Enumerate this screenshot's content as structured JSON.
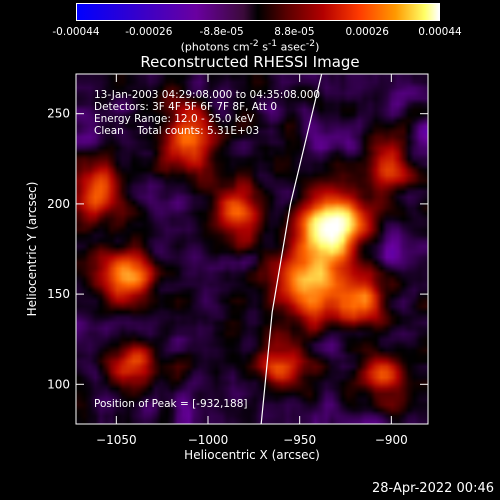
{
  "colorbar": {
    "ticks": [
      "-0.00044",
      "-0.00026",
      "-8.8e-05",
      "8.8e-05",
      "0.00026",
      "0.00044"
    ],
    "units_html": "(photons cm<sup>-2</sup> s<sup>-1</sup> asec<sup>-2</sup>)"
  },
  "chart_data": {
    "type": "heatmap",
    "title": "Reconstructed RHESSI Image",
    "xlabel": "Heliocentric X (arcsec)",
    "ylabel": "Heliocentric Y (arcsec)",
    "xlim": [
      -1072,
      -880
    ],
    "ylim": [
      78,
      272
    ],
    "xticks": [
      -1050,
      -1000,
      -950,
      -900
    ],
    "yticks": [
      100,
      150,
      200,
      250
    ],
    "annotations": [
      "13-Jan-2003 04:29:08.000 to 04:35:08.000",
      "Detectors: 3F 4F 5F 6F 7F 8F, Att 0",
      "Energy Range: 12.0 - 25.0 keV",
      "Clean    Total counts: 5.31E+03"
    ],
    "peak_label": "Position of Peak = [-932,188]",
    "peak": [
      -932,
      188
    ],
    "colorscale": [
      "#0000ff",
      "#6a00a0",
      "#000000",
      "#b30000",
      "#ff6600",
      "#ffff66",
      "#ffffff"
    ],
    "limb_curve": [
      [
        -971,
        78
      ],
      [
        -965,
        140
      ],
      [
        -955,
        200
      ],
      [
        -938,
        272
      ]
    ],
    "sources": [
      {
        "x": -932,
        "y": 188,
        "sigma": 12,
        "amp": 1.0
      },
      {
        "x": -945,
        "y": 155,
        "sigma": 14,
        "amp": 0.7
      },
      {
        "x": -915,
        "y": 145,
        "sigma": 10,
        "amp": 0.5
      },
      {
        "x": -1045,
        "y": 160,
        "sigma": 11,
        "amp": 0.6
      },
      {
        "x": -1060,
        "y": 210,
        "sigma": 10,
        "amp": 0.55
      },
      {
        "x": -1010,
        "y": 235,
        "sigma": 12,
        "amp": 0.5
      },
      {
        "x": -985,
        "y": 195,
        "sigma": 10,
        "amp": 0.5
      },
      {
        "x": -1040,
        "y": 110,
        "sigma": 10,
        "amp": 0.45
      },
      {
        "x": -960,
        "y": 110,
        "sigma": 9,
        "amp": 0.5
      },
      {
        "x": -905,
        "y": 105,
        "sigma": 9,
        "amp": 0.4
      },
      {
        "x": -900,
        "y": 220,
        "sigma": 9,
        "amp": 0.45
      }
    ]
  },
  "footer": {
    "timestamp": "28-Apr-2022 00:46"
  }
}
